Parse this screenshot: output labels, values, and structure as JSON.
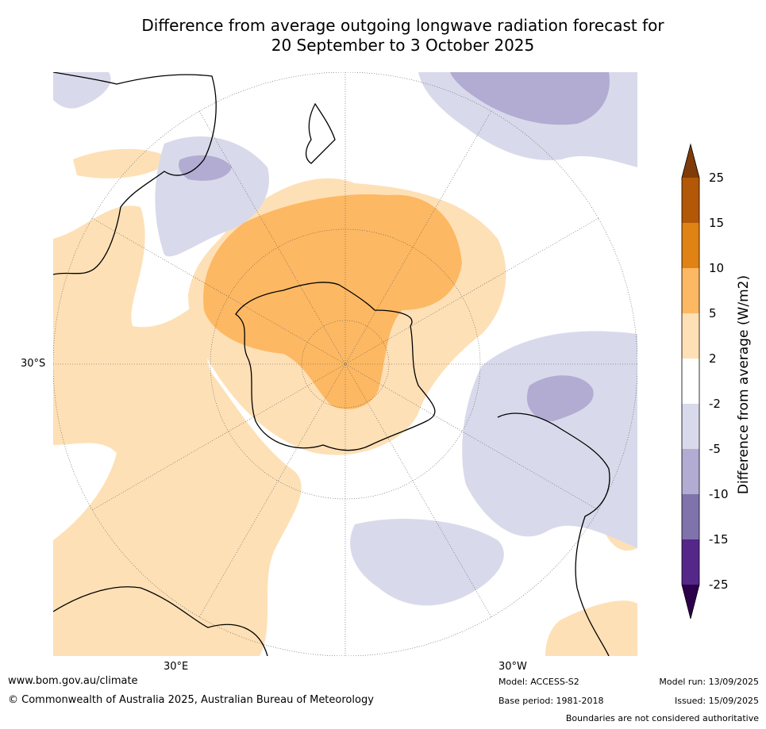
{
  "title": {
    "line1": "Difference from average outgoing longwave radiation forecast for",
    "line2": "20 September to 3 October 2025"
  },
  "map": {
    "lat_label": "30°S",
    "lon_labels": [
      "30°E",
      "30°W"
    ]
  },
  "colorbar": {
    "title": "Difference from average (W/m2)",
    "ticks": [
      "25",
      "15",
      "10",
      "5",
      "2",
      "-2",
      "-5",
      "-10",
      "-15",
      "-25"
    ],
    "colors": {
      "gt25": "#7f3b08",
      "15_25": "#b35806",
      "10_15": "#e08214",
      "5_10": "#fdb863",
      "2_5": "#fee0b6",
      "m2_2": "#ffffff",
      "m5_m2": "#d8daeb",
      "m10_m5": "#b2abd2",
      "m15_m10": "#8073ac",
      "m25_m15": "#542788",
      "lt_m25": "#2d004b"
    }
  },
  "footer": {
    "website": "www.bom.gov.au/climate",
    "copyright": "© Commonwealth of Australia 2025, Australian Bureau of Meteorology",
    "model": "Model: ACCESS-S2",
    "base_period": "Base period: 1981-2018",
    "model_run": "Model run: 13/09/2025",
    "issued": "Issued: 15/09/2025",
    "disclaimer": "Boundaries are not considered authoritative"
  }
}
